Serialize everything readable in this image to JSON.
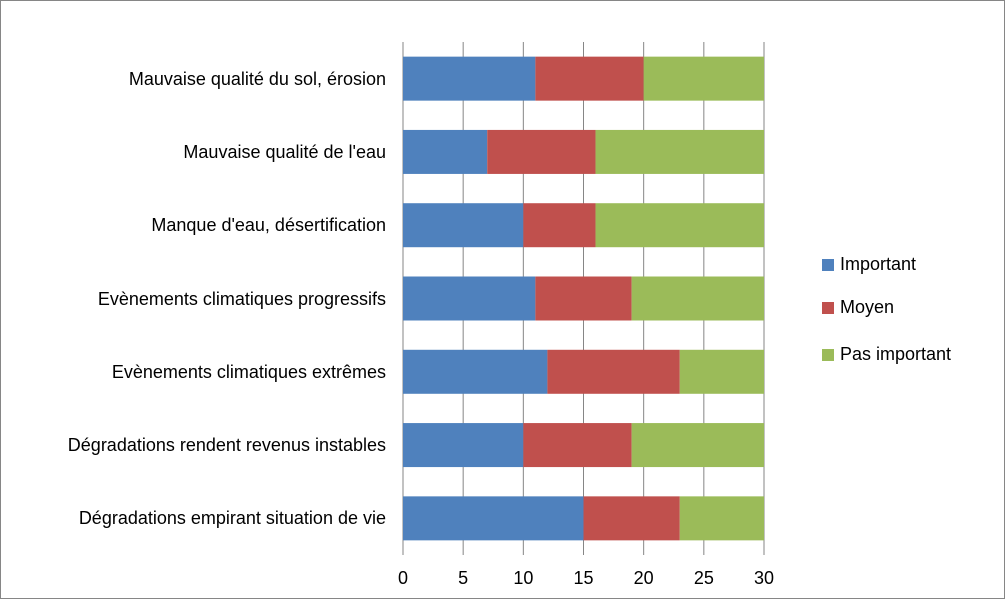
{
  "chart_data": {
    "type": "bar",
    "orientation": "horizontal",
    "stacked": true,
    "categories": [
      "Mauvaise qualité du sol, érosion",
      "Mauvaise qualité de l'eau",
      "Manque d'eau, désertification",
      "Evènements climatiques progressifs",
      "Evènements climatiques extrêmes",
      "Dégradations rendent revenus instables",
      "Dégradations empirant situation de vie"
    ],
    "series": [
      {
        "name": "Important",
        "color": "#4f81bd",
        "values": [
          11,
          7,
          10,
          11,
          12,
          10,
          15
        ]
      },
      {
        "name": "Moyen",
        "color": "#c0504d",
        "values": [
          9,
          9,
          6,
          8,
          11,
          9,
          8
        ]
      },
      {
        "name": "Pas important",
        "color": "#9bbb59",
        "values": [
          10,
          14,
          14,
          11,
          7,
          11,
          7
        ]
      }
    ],
    "xlim": [
      0,
      30
    ],
    "xticks": [
      0,
      5,
      10,
      15,
      20,
      25,
      30
    ],
    "grid": true,
    "legend": "right"
  }
}
